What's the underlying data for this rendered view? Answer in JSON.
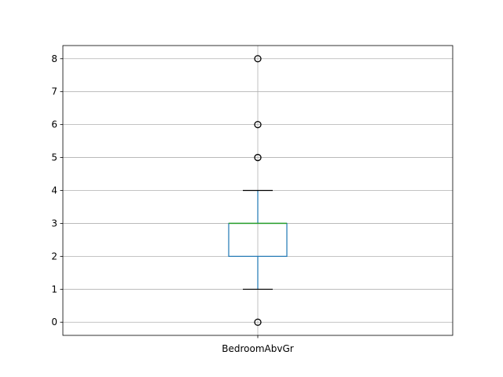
{
  "chart_data": {
    "type": "box",
    "categories": [
      "BedroomAbvGr"
    ],
    "title": "",
    "xlabel": "",
    "ylabel": "",
    "ylim": [
      -0.4,
      8.4
    ],
    "yticks": [
      "0",
      "1",
      "2",
      "3",
      "4",
      "5",
      "6",
      "7",
      "8"
    ],
    "grid": true,
    "boxes": [
      {
        "name": "BedroomAbvGr",
        "whisker_low": 1,
        "q1": 2,
        "median": 3,
        "q3": 3,
        "whisker_high": 4,
        "outliers": [
          0,
          5,
          6,
          8
        ]
      }
    ],
    "colors": {
      "box": "#1f77b4",
      "median": "#2ca02c",
      "whisker_cap": "#000000",
      "outlier": "#000000",
      "grid": "#b0b0b0"
    }
  }
}
